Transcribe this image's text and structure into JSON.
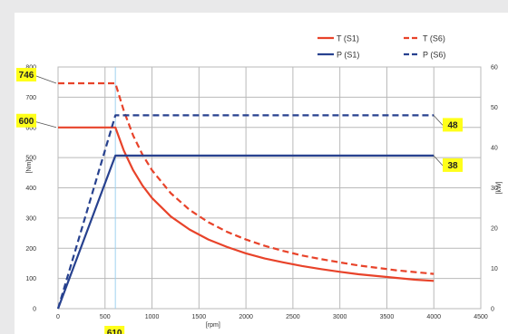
{
  "colors": {
    "torque": "#e8432a",
    "power": "#27418f",
    "grid": "#b9b9b9",
    "highlight": "#ffff1a",
    "panel": "#ffffff",
    "background": "#e9e9ea"
  },
  "chart_data": {
    "type": "line",
    "x": [
      0,
      610,
      700,
      800,
      900,
      1000,
      1200,
      1400,
      1600,
      1800,
      2000,
      2200,
      2400,
      2600,
      2800,
      3000,
      3200,
      3400,
      3600,
      3800,
      4000
    ],
    "series": [
      {
        "name": "T (S1)",
        "axis": "left",
        "style": "solid",
        "color_key": "torque",
        "values": [
          600,
          600,
          523,
          458,
          407,
          366,
          305,
          262,
          229,
          204,
          183,
          166,
          153,
          141,
          131,
          122,
          114,
          108,
          102,
          96,
          92
        ]
      },
      {
        "name": "T (S6)",
        "axis": "left",
        "style": "dashed",
        "color_key": "torque",
        "values": [
          746,
          746,
          655,
          573,
          509,
          458,
          382,
          327,
          286,
          254,
          229,
          208,
          191,
          176,
          164,
          153,
          143,
          135,
          127,
          121,
          115
        ]
      },
      {
        "name": "P (S1)",
        "axis": "right",
        "style": "solid",
        "color_key": "power",
        "values": [
          0,
          38,
          38,
          38,
          38,
          38,
          38,
          38,
          38,
          38,
          38,
          38,
          38,
          38,
          38,
          38,
          38,
          38,
          38,
          38,
          38
        ]
      },
      {
        "name": "P (S6)",
        "axis": "right",
        "style": "dashed",
        "color_key": "power",
        "values": [
          0,
          48,
          48,
          48,
          48,
          48,
          48,
          48,
          48,
          48,
          48,
          48,
          48,
          48,
          48,
          48,
          48,
          48,
          48,
          48,
          48
        ]
      }
    ],
    "xlim": [
      0,
      4500
    ],
    "ylim": [
      0,
      800
    ],
    "y2lim": [
      0,
      60
    ],
    "xticks": [
      "0",
      "500",
      "1000",
      "1500",
      "2000",
      "2500",
      "3000",
      "3500",
      "4000",
      "4500"
    ],
    "yticks": [
      "0",
      "100",
      "200",
      "300",
      "400",
      "500",
      "600",
      "700",
      "800"
    ],
    "y2ticks": [
      "0",
      "10",
      "20",
      "30",
      "40",
      "50",
      "60"
    ],
    "xlabel": "[rpm]",
    "ylabel": "[Nm]",
    "y2label": "[kW]",
    "grid": true,
    "legend_position": "top-right",
    "annotations": [
      {
        "text": "746",
        "axis": "left",
        "value": 746,
        "side": "left"
      },
      {
        "text": "600",
        "axis": "left",
        "value": 600,
        "side": "left"
      },
      {
        "text": "48",
        "axis": "right",
        "value": 48,
        "side": "right"
      },
      {
        "text": "38",
        "axis": "right",
        "value": 38,
        "side": "right"
      },
      {
        "text": "610",
        "axis": "x",
        "value": 610,
        "side": "bottom"
      }
    ]
  }
}
